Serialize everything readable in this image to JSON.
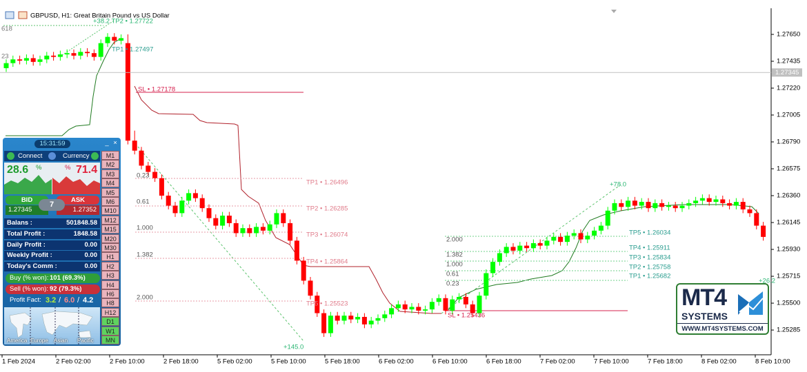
{
  "window": {
    "title": "GBPUSD, H1:  Great Britain Pound vs US Dollar"
  },
  "chart": {
    "type": "candlestick",
    "ylim": [
      1.25087,
      1.27859
    ],
    "yticks": [
      {
        "value": 1.2765,
        "label": "1.27650"
      },
      1.27435,
      {
        "value": 1.2722,
        "label": "1.27220"
      },
      1.27005,
      {
        "value": 1.2679,
        "label": "1.26790"
      },
      1.26575,
      {
        "value": 1.2636,
        "label": "1.26360"
      },
      1.26145,
      {
        "value": 1.2593,
        "label": "1.25930"
      },
      1.25715,
      {
        "value": 1.255,
        "label": "1.25500"
      },
      1.25285
    ],
    "xlabels": [
      "1 Feb 2024",
      "2 Feb 02:00",
      "2 Feb 10:00",
      "2 Feb 18:00",
      "5 Feb 02:00",
      "5 Feb 10:00",
      "5 Feb 18:00",
      "6 Feb 02:00",
      "6 Feb 10:00",
      "6 Feb 18:00",
      "7 Feb 02:00",
      "7 Feb 10:00",
      "7 Feb 18:00",
      "8 Feb 02:00",
      "8 Feb 10:00"
    ],
    "current_price": 1.27345,
    "up_color": "#00ff00",
    "down_color": "#ff0000",
    "candles": [
      [
        1.2738,
        1.2745,
        1.2735,
        1.2742
      ],
      [
        1.2742,
        1.2748,
        1.2739,
        1.2745
      ],
      [
        1.2745,
        1.2748,
        1.2741,
        1.2744
      ],
      [
        1.2744,
        1.2749,
        1.2741,
        1.2746
      ],
      [
        1.2746,
        1.2749,
        1.274,
        1.2743
      ],
      [
        1.2743,
        1.2748,
        1.274,
        1.2745
      ],
      [
        1.2745,
        1.2751,
        1.2742,
        1.2748
      ],
      [
        1.2748,
        1.2751,
        1.2744,
        1.2747
      ],
      [
        1.2747,
        1.2752,
        1.2744,
        1.2749
      ],
      [
        1.2749,
        1.2753,
        1.2746,
        1.275
      ],
      [
        1.275,
        1.2753,
        1.2745,
        1.2748
      ],
      [
        1.2748,
        1.2754,
        1.2745,
        1.2751
      ],
      [
        1.2751,
        1.2754,
        1.2747,
        1.275
      ],
      [
        1.275,
        1.2753,
        1.2744,
        1.2747
      ],
      [
        1.2747,
        1.2761,
        1.2744,
        1.2758
      ],
      [
        1.2758,
        1.2766,
        1.2755,
        1.2763
      ],
      [
        1.2763,
        1.2766,
        1.2757,
        1.276
      ],
      [
        1.276,
        1.2765,
        1.2757,
        1.2762
      ],
      [
        1.2758,
        1.2765,
        1.2677,
        1.268
      ],
      [
        1.268,
        1.2688,
        1.2669,
        1.2672
      ],
      [
        1.2672,
        1.2675,
        1.2657,
        1.266
      ],
      [
        1.266,
        1.2663,
        1.2652,
        1.2655
      ],
      [
        1.2655,
        1.2658,
        1.2647,
        1.265
      ],
      [
        1.265,
        1.2653,
        1.2633,
        1.2636
      ],
      [
        1.2636,
        1.2639,
        1.2625,
        1.2628
      ],
      [
        1.2628,
        1.2631,
        1.2619,
        1.2622
      ],
      [
        1.2622,
        1.2635,
        1.2619,
        1.2632
      ],
      [
        1.2632,
        1.2641,
        1.2629,
        1.2638
      ],
      [
        1.2638,
        1.2641,
        1.2631,
        1.2634
      ],
      [
        1.2634,
        1.2637,
        1.2623,
        1.2626
      ],
      [
        1.2626,
        1.2629,
        1.2615,
        1.2618
      ],
      [
        1.2618,
        1.2621,
        1.2609,
        1.2612
      ],
      [
        1.2612,
        1.2623,
        1.2609,
        1.262
      ],
      [
        1.262,
        1.2623,
        1.2611,
        1.2614
      ],
      [
        1.2614,
        1.2617,
        1.2603,
        1.2606
      ],
      [
        1.2606,
        1.2613,
        1.2603,
        1.261
      ],
      [
        1.261,
        1.2613,
        1.2603,
        1.2606
      ],
      [
        1.2606,
        1.2614,
        1.2603,
        1.2611
      ],
      [
        1.2611,
        1.2614,
        1.2605,
        1.2608
      ],
      [
        1.2608,
        1.2616,
        1.2605,
        1.2613
      ],
      [
        1.2613,
        1.2625,
        1.261,
        1.2622
      ],
      [
        1.2622,
        1.2625,
        1.2611,
        1.2614
      ],
      [
        1.2614,
        1.2617,
        1.2597,
        1.26
      ],
      [
        1.26,
        1.2603,
        1.2581,
        1.2584
      ],
      [
        1.2584,
        1.2587,
        1.2565,
        1.2568
      ],
      [
        1.2568,
        1.2571,
        1.2553,
        1.2556
      ],
      [
        1.2556,
        1.2559,
        1.2539,
        1.2542
      ],
      [
        1.2542,
        1.2545,
        1.2523,
        1.2526
      ],
      [
        1.2526,
        1.2543,
        1.2523,
        1.254
      ],
      [
        1.254,
        1.2543,
        1.2533,
        1.2536
      ],
      [
        1.2536,
        1.2543,
        1.2533,
        1.254
      ],
      [
        1.254,
        1.2543,
        1.2534,
        1.2537
      ],
      [
        1.2537,
        1.2542,
        1.2534,
        1.2539
      ],
      [
        1.2539,
        1.2542,
        1.253,
        1.2533
      ],
      [
        1.2533,
        1.2539,
        1.253,
        1.2536
      ],
      [
        1.2536,
        1.2541,
        1.2533,
        1.2538
      ],
      [
        1.2538,
        1.2544,
        1.2535,
        1.2541
      ],
      [
        1.2541,
        1.2549,
        1.2538,
        1.2546
      ],
      [
        1.2546,
        1.2552,
        1.2543,
        1.2549
      ],
      [
        1.2549,
        1.2552,
        1.2542,
        1.2545
      ],
      [
        1.2545,
        1.255,
        1.2542,
        1.2547
      ],
      [
        1.2547,
        1.255,
        1.2541,
        1.2544
      ],
      [
        1.2544,
        1.2548,
        1.2541,
        1.2545
      ],
      [
        1.2545,
        1.2554,
        1.2542,
        1.2551
      ],
      [
        1.2551,
        1.2557,
        1.2548,
        1.2554
      ],
      [
        1.2554,
        1.2557,
        1.2541,
        1.2544
      ],
      [
        1.2544,
        1.2556,
        1.2541,
        1.2553
      ],
      [
        1.2553,
        1.2558,
        1.255,
        1.2555
      ],
      [
        1.2555,
        1.2558,
        1.2546,
        1.2549
      ],
      [
        1.2549,
        1.2552,
        1.2539,
        1.2542
      ],
      [
        1.2542,
        1.2559,
        1.2539,
        1.2556
      ],
      [
        1.2556,
        1.2577,
        1.2553,
        1.2574
      ],
      [
        1.2574,
        1.2586,
        1.2571,
        1.2583
      ],
      [
        1.2583,
        1.2593,
        1.258,
        1.259
      ],
      [
        1.259,
        1.2598,
        1.2587,
        1.2595
      ],
      [
        1.2595,
        1.2598,
        1.2589,
        1.2592
      ],
      [
        1.2592,
        1.2599,
        1.2589,
        1.2596
      ],
      [
        1.2596,
        1.2599,
        1.2591,
        1.2594
      ],
      [
        1.2594,
        1.2601,
        1.2591,
        1.2598
      ],
      [
        1.2598,
        1.2601,
        1.2593,
        1.2596
      ],
      [
        1.2596,
        1.2603,
        1.2593,
        1.26
      ],
      [
        1.26,
        1.2606,
        1.2597,
        1.2603
      ],
      [
        1.2603,
        1.2606,
        1.2596,
        1.2599
      ],
      [
        1.2599,
        1.2607,
        1.2596,
        1.2604
      ],
      [
        1.2604,
        1.2609,
        1.2601,
        1.2606
      ],
      [
        1.2606,
        1.2609,
        1.2598,
        1.2601
      ],
      [
        1.2601,
        1.2607,
        1.2598,
        1.2604
      ],
      [
        1.2604,
        1.2611,
        1.2601,
        1.2608
      ],
      [
        1.2608,
        1.2615,
        1.2605,
        1.2612
      ],
      [
        1.2612,
        1.2627,
        1.2609,
        1.2624
      ],
      [
        1.2624,
        1.2633,
        1.2621,
        1.263
      ],
      [
        1.263,
        1.2633,
        1.2624,
        1.2627
      ],
      [
        1.2627,
        1.2635,
        1.2624,
        1.2632
      ],
      [
        1.2632,
        1.2635,
        1.2625,
        1.2628
      ],
      [
        1.2628,
        1.2634,
        1.2625,
        1.2631
      ],
      [
        1.2631,
        1.2634,
        1.2623,
        1.2626
      ],
      [
        1.2626,
        1.2633,
        1.2623,
        1.263
      ],
      [
        1.263,
        1.2633,
        1.2624,
        1.2627
      ],
      [
        1.2627,
        1.2631,
        1.2624,
        1.2628
      ],
      [
        1.2628,
        1.2631,
        1.2623,
        1.2626
      ],
      [
        1.2626,
        1.2631,
        1.2623,
        1.2628
      ],
      [
        1.2628,
        1.2633,
        1.2625,
        1.263
      ],
      [
        1.263,
        1.2635,
        1.2627,
        1.2632
      ],
      [
        1.2632,
        1.2637,
        1.2629,
        1.2634
      ],
      [
        1.2634,
        1.2637,
        1.2628,
        1.2631
      ],
      [
        1.2631,
        1.2636,
        1.2628,
        1.2633
      ],
      [
        1.2633,
        1.2636,
        1.2627,
        1.263
      ],
      [
        1.263,
        1.2633,
        1.2625,
        1.2628
      ],
      [
        1.2628,
        1.2634,
        1.2625,
        1.2631
      ],
      [
        1.2631,
        1.2634,
        1.2622,
        1.2625
      ],
      [
        1.2625,
        1.2628,
        1.2619,
        1.2622
      ],
      [
        1.2622,
        1.2625,
        1.2609,
        1.2612
      ],
      [
        1.2612,
        1.2615,
        1.26,
        1.2603
      ]
    ]
  },
  "annotations": [
    "+38.2 TP2 • 1.27722",
    "TP1 • 1.27497",
    "SL • 1.27178",
    "TP1 • 1.26496",
    "TP2 • 1.26285",
    "TP3 • 1.26074",
    "TP4 • 1.25864",
    "TP5 • 1.25523",
    "SL • 1.25436",
    "+145.0",
    "+78.0",
    "TP5 • 1.26034",
    "TP4 • 1.25911",
    "TP3 • 1.25834",
    "TP2 • 1.25758",
    "TP1 • 1.25682",
    "+26.2",
    "618",
    "23"
  ],
  "fib_left": [
    "0.23",
    "0.61",
    "1.000",
    "1.382",
    "2.000"
  ],
  "fib_right": [
    "2.000",
    "1.382",
    "1.000",
    "0.61",
    "0.23"
  ],
  "panel": {
    "clock": "15:31:59",
    "minimize": "_",
    "close": "×",
    "connect": "Connect",
    "currency": "Currency",
    "buy_percent": "28.6",
    "percent_sign": "%",
    "sell_percent": "71.4",
    "bid_label": "BID",
    "ask_label": "ASK",
    "spread": "7",
    "bid": "1.27345",
    "ask": "1.27352",
    "rows": [
      [
        "Balans :",
        "501848.58"
      ],
      [
        "Total Profit :",
        "1848.58"
      ],
      [
        "Daily Profit :",
        "0.00"
      ],
      [
        "Weekly Profit :",
        "0.00"
      ],
      [
        "Today's Comm :",
        "0.00"
      ]
    ],
    "buy_won": [
      "Buy (% won):",
      "101 (69.3%)"
    ],
    "sell_won": [
      "Sell (% won):",
      "92 (79.3%)"
    ],
    "profit_factor": {
      "label": "Profit Fact:",
      "values": [
        "3.2",
        "6.0",
        "4.2"
      ],
      "separator": "/"
    },
    "sessions": [
      "America",
      "Europe",
      "Asian",
      "Pacific"
    ],
    "timeframes": [
      "M1",
      "M2",
      "M3",
      "M4",
      "M5",
      "M6",
      "M10",
      "M12",
      "M15",
      "M20",
      "M30",
      "H1",
      "H2",
      "H3",
      "H4",
      "H6",
      "H8",
      "H12",
      "D1",
      "W1",
      "MN"
    ]
  },
  "logo": {
    "name": "MT4",
    "sub": "SYSTEMS",
    "url": "WWW.MT4SYSTEMS.COM"
  }
}
